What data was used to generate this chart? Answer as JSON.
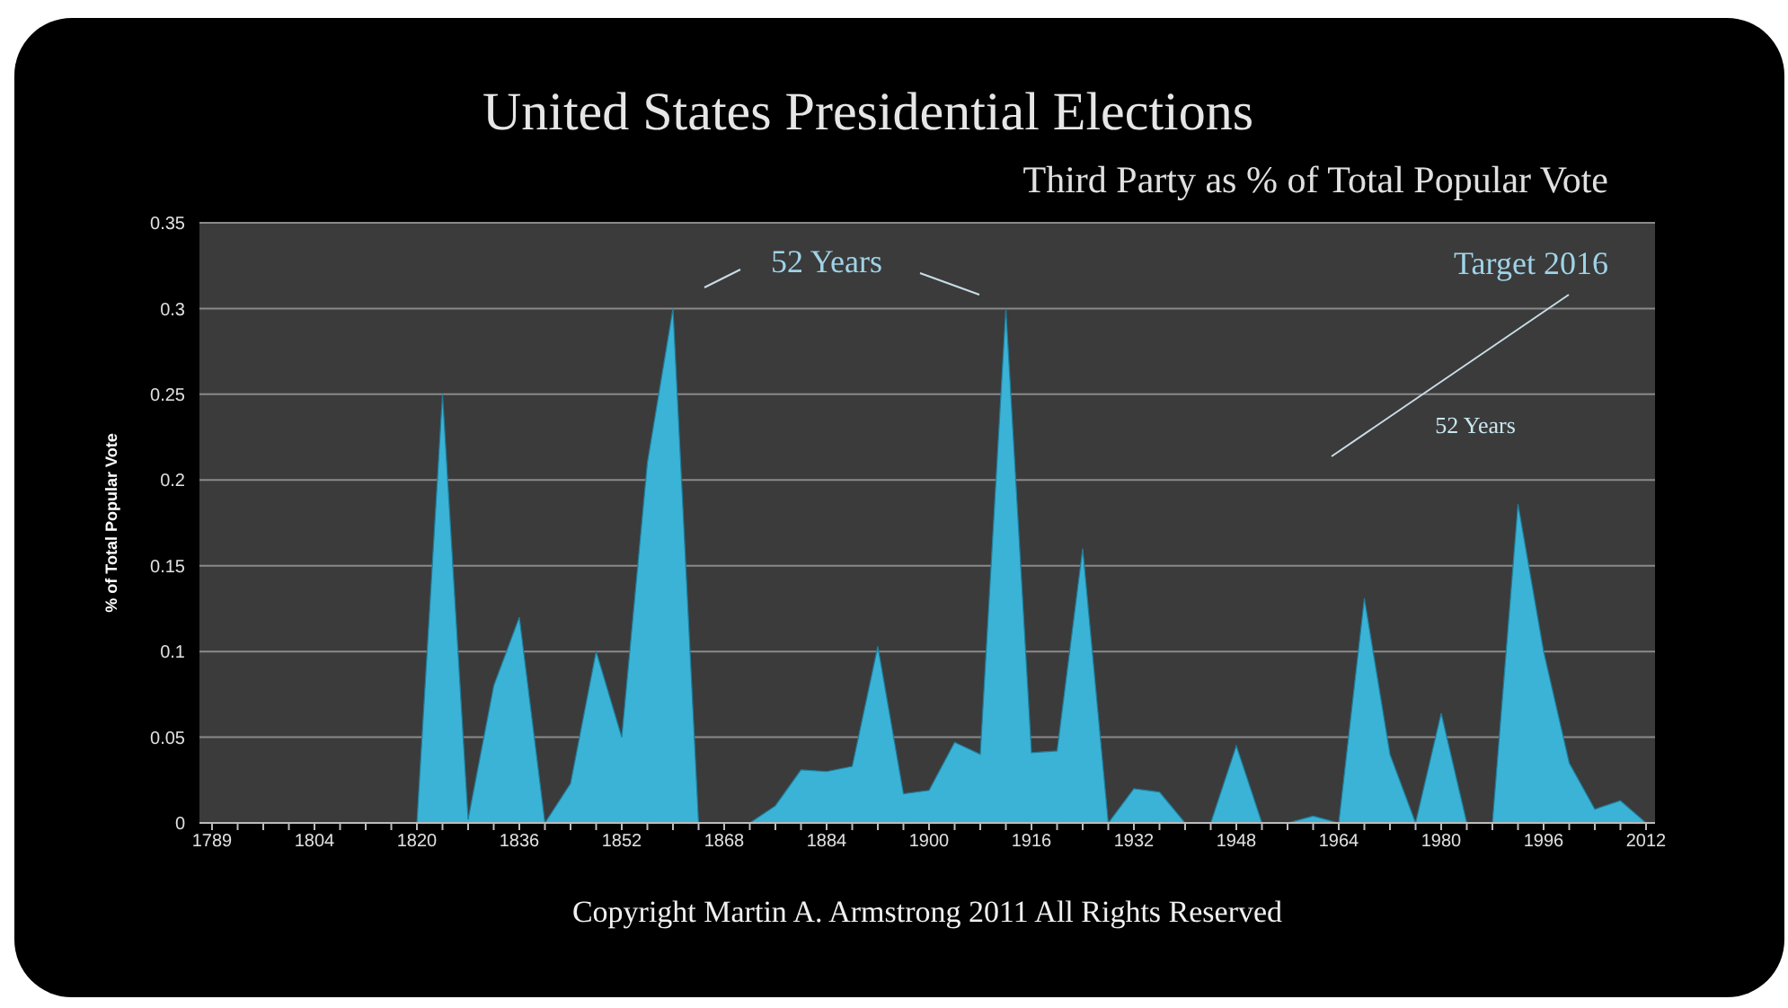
{
  "chart_data": {
    "type": "area",
    "title": "United States Presidential Elections",
    "subtitle": "Third Party as % of Total Popular Vote",
    "ylabel": "% of Total Popular Vote",
    "categories": [
      "1789",
      null,
      null,
      null,
      "1804",
      null,
      null,
      null,
      "1820",
      null,
      null,
      null,
      "1836",
      null,
      null,
      null,
      "1852",
      null,
      null,
      null,
      "1868",
      null,
      null,
      null,
      "1884",
      null,
      null,
      null,
      "1900",
      null,
      null,
      null,
      "1916",
      null,
      null,
      null,
      "1932",
      null,
      null,
      null,
      "1948",
      null,
      null,
      null,
      "1964",
      null,
      null,
      null,
      "1980",
      null,
      null,
      null,
      "1996",
      null,
      null,
      null,
      "2012"
    ],
    "values": [
      0,
      0,
      0,
      0,
      0,
      0,
      0,
      0,
      0,
      0.25,
      0.002,
      0.08,
      0.12,
      0,
      0.023,
      0.1,
      0.05,
      0.21,
      0.3,
      0,
      0,
      0,
      0.01,
      0.031,
      0.03,
      0.033,
      0.103,
      0.017,
      0.019,
      0.047,
      0.04,
      0.3,
      0.041,
      0.042,
      0.16,
      0,
      0.02,
      0.018,
      0,
      0,
      0.045,
      0,
      0,
      0.004,
      0,
      0.131,
      0.04,
      0,
      0.064,
      0,
      0,
      0.186,
      0.1,
      0.035,
      0.008,
      0.013,
      0
    ],
    "color": "#3bb3d6",
    "ylim": [
      0,
      0.35
    ],
    "yticks": [
      0,
      0.05,
      0.1,
      0.15,
      0.2,
      0.25,
      0.3,
      0.35
    ],
    "grid": "y",
    "annotations": [
      "52 Years",
      "Target 2016",
      "52 Years",
      "Copyright Martin A. Armstrong 2011 All Rights Reserved"
    ]
  }
}
